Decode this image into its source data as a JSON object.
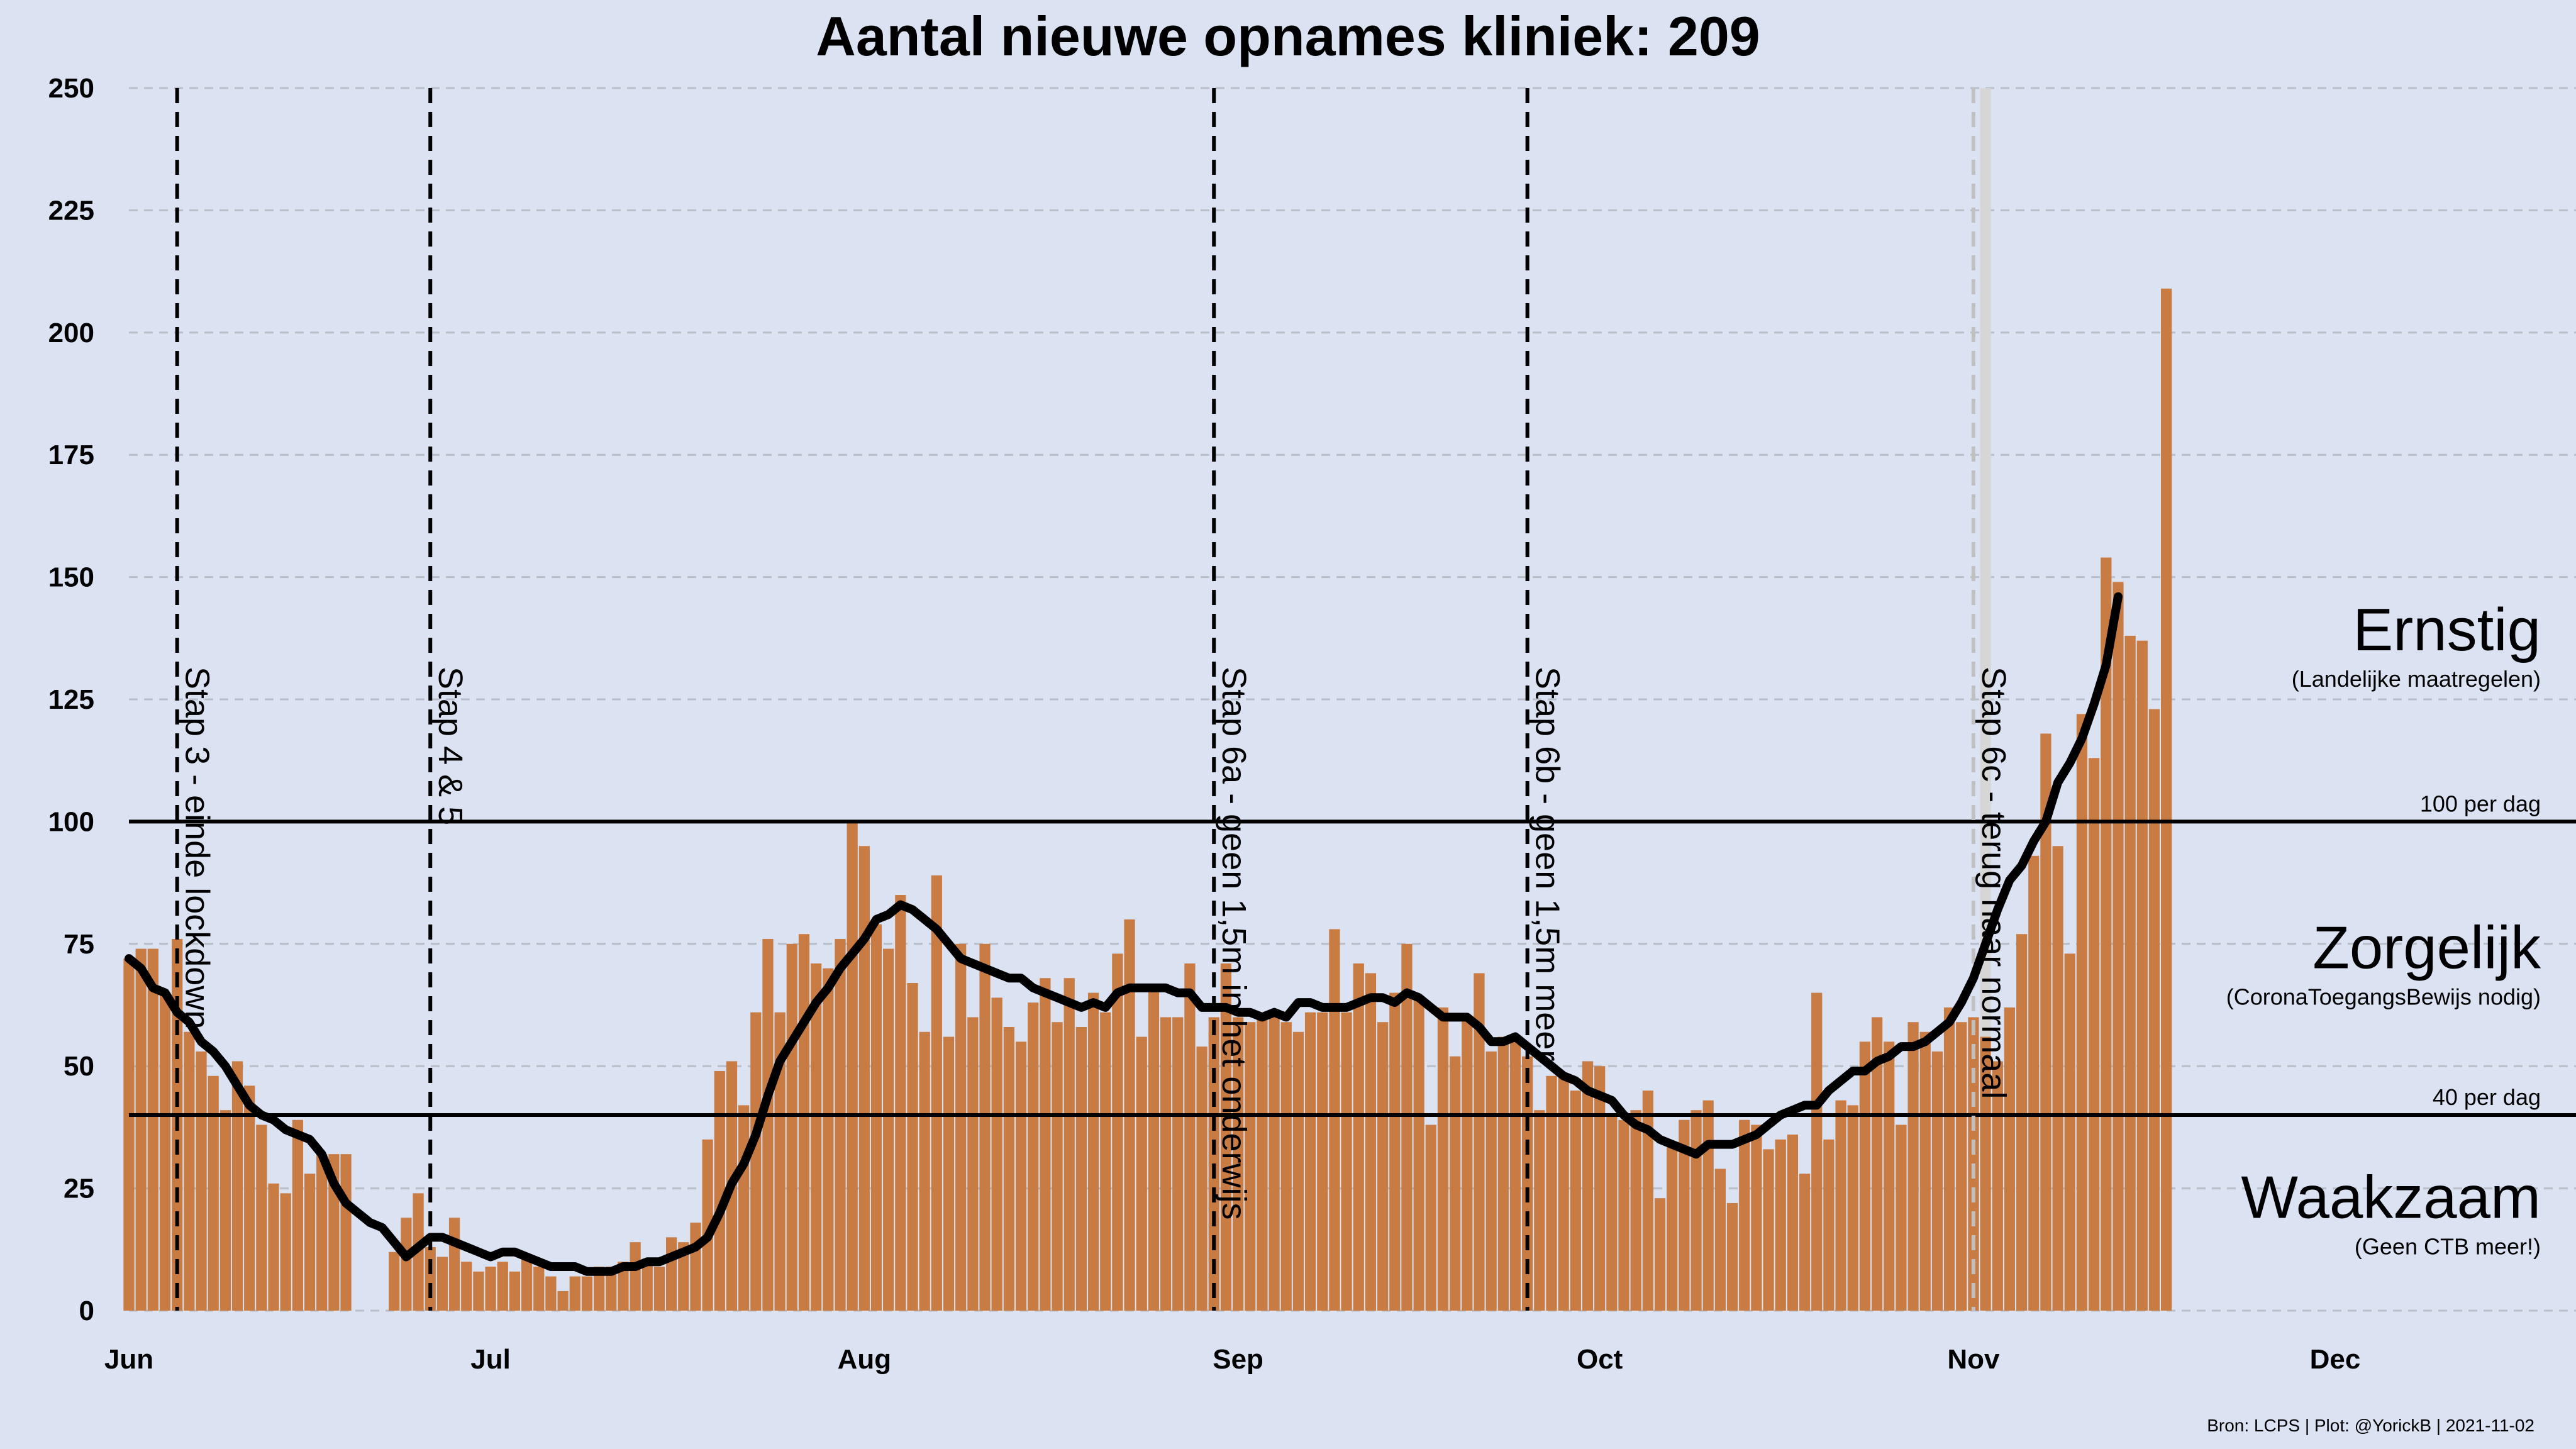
{
  "title": "Aantal nieuwe opnames kliniek:  209",
  "source": "Bron: LCPS | Plot: @YorickB |  2021-11-02",
  "colors": {
    "background": "#dbe3f3",
    "bar": "#c87c44",
    "bar_pending": "#d6d6d6",
    "line": "#000000",
    "event_line": "#000000",
    "event_line_recent": "#c0c0c0"
  },
  "chart_data": {
    "type": "bar",
    "title": "Aantal nieuwe opnames kliniek:  209",
    "x_start": "2021-06-01",
    "x_end": "2021-12-01",
    "ylim": [
      0,
      250
    ],
    "yticks": [
      0,
      25,
      50,
      75,
      100,
      125,
      150,
      175,
      200,
      225,
      250
    ],
    "xticks": [
      {
        "label": "Jun",
        "date": "2021-06-01"
      },
      {
        "label": "Jul",
        "date": "2021-07-01"
      },
      {
        "label": "Aug",
        "date": "2021-08-01"
      },
      {
        "label": "Sep",
        "date": "2021-09-01"
      },
      {
        "label": "Oct",
        "date": "2021-10-01"
      },
      {
        "label": "Nov",
        "date": "2021-11-01"
      },
      {
        "label": "Dec",
        "date": "2021-12-01"
      }
    ],
    "grid": "horizontal dashed",
    "bars": {
      "first_date": "2021-06-01",
      "values": [
        72,
        74,
        74,
        65,
        76,
        57,
        53,
        48,
        41,
        51,
        46,
        38,
        26,
        24,
        39,
        28,
        32,
        32,
        32,
        null,
        null,
        null,
        12,
        19,
        24,
        13,
        11,
        19,
        10,
        8,
        9,
        10,
        8,
        11,
        9,
        7,
        4,
        7,
        7,
        9,
        9,
        10,
        14,
        10,
        9,
        15,
        14,
        18,
        35,
        49,
        51,
        42,
        61,
        76,
        61,
        75,
        77,
        71,
        70,
        76,
        100,
        95,
        79,
        74,
        85,
        67,
        57,
        89,
        56,
        75,
        60,
        75,
        64,
        58,
        55,
        63,
        68,
        59,
        68,
        58,
        65,
        61,
        73,
        80,
        56,
        66,
        60,
        60,
        71,
        54,
        60,
        71,
        60,
        59,
        60,
        60,
        59,
        57,
        61,
        61,
        78,
        61,
        71,
        69,
        59,
        65,
        75,
        64,
        38,
        62,
        52,
        60,
        69,
        53,
        56,
        55,
        52,
        41,
        48,
        48,
        45,
        51,
        50,
        40,
        39,
        41,
        45,
        23,
        34,
        39,
        41,
        43,
        29,
        22,
        39,
        38,
        33,
        35,
        36,
        28,
        65,
        35,
        43,
        42,
        55,
        60,
        55,
        38,
        59,
        57,
        53,
        62,
        59,
        60,
        56,
        51,
        62,
        77,
        93,
        118,
        95,
        73,
        122,
        113,
        154,
        149,
        138,
        137,
        123,
        209
      ],
      "pending_top": {
        "date": "2021-11-02",
        "value": 250
      }
    },
    "series": [
      {
        "name": "",
        "type": "line",
        "first_date": "2021-06-01",
        "values": [
          72,
          70,
          66,
          65,
          61,
          59,
          55,
          53,
          50,
          46,
          42,
          40,
          39,
          37,
          36,
          35,
          32,
          26,
          22,
          20,
          18,
          17,
          14,
          11,
          13,
          15,
          15,
          14,
          13,
          12,
          11,
          12,
          12,
          11,
          10,
          9,
          9,
          9,
          8,
          8,
          8,
          9,
          9,
          10,
          10,
          11,
          12,
          13,
          15,
          20,
          26,
          30,
          36,
          44,
          51,
          55,
          59,
          63,
          66,
          70,
          73,
          76,
          80,
          81,
          83,
          82,
          80,
          78,
          75,
          72,
          71,
          70,
          69,
          68,
          68,
          66,
          65,
          64,
          63,
          62,
          63,
          62,
          65,
          66,
          66,
          66,
          66,
          65,
          65,
          62,
          62,
          62,
          61,
          61,
          60,
          61,
          60,
          63,
          63,
          62,
          62,
          62,
          63,
          64,
          64,
          63,
          65,
          64,
          62,
          60,
          60,
          60,
          58,
          55,
          55,
          56,
          54,
          52,
          50,
          48,
          47,
          45,
          44,
          43,
          40,
          38,
          37,
          35,
          34,
          33,
          32,
          34,
          34,
          34,
          35,
          36,
          38,
          40,
          41,
          42,
          42,
          45,
          47,
          49,
          49,
          51,
          52,
          54,
          54,
          55,
          57,
          59,
          63,
          68,
          75,
          82,
          88,
          91,
          96,
          100,
          108,
          112,
          117,
          124,
          132,
          146
        ]
      }
    ],
    "thresholds": [
      {
        "value": 100,
        "label": "100 per dag"
      },
      {
        "value": 40,
        "label": "40 per dag"
      }
    ],
    "zones": [
      {
        "name": "Ernstig",
        "note": "(Landelijke maatregelen)",
        "y": 135
      },
      {
        "name": "Zorgelijk",
        "note": "(CoronaToegangsBewijs nodig)",
        "y": 70
      },
      {
        "name": "Waakzaam",
        "note": "(Geen CTB meer!)",
        "y": 19
      }
    ],
    "events": [
      {
        "date": "2021-06-05",
        "label": "Stap 3 - einde lockdown",
        "recent": false
      },
      {
        "date": "2021-06-26",
        "label": "Stap 4 & 5",
        "recent": false
      },
      {
        "date": "2021-08-30",
        "label": "Stap 6a - geen 1,5m in het onderwijs",
        "recent": false
      },
      {
        "date": "2021-09-25",
        "label": "Stap 6b - geen 1,5m meer",
        "recent": false
      },
      {
        "date": "2021-11-01",
        "label": "Stap 6c - terug naar normaal",
        "recent": true
      }
    ]
  }
}
